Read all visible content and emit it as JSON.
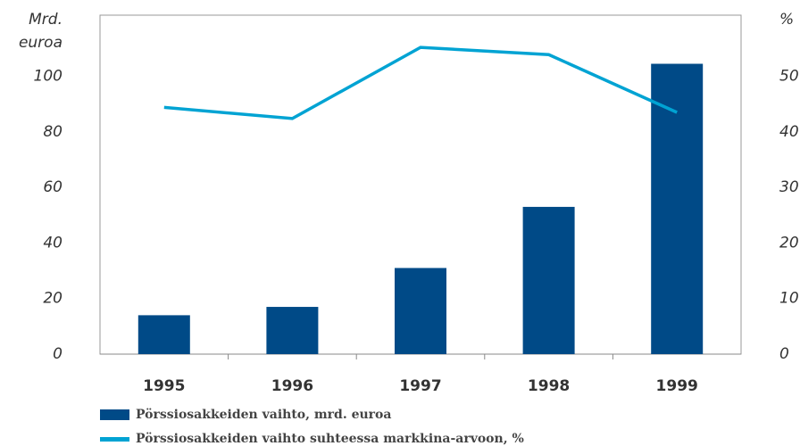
{
  "chart_data": {
    "type": "bar-line",
    "y_label": [
      "Mrd.",
      "euroa"
    ],
    "y2_label": "%",
    "categories": [
      "1995",
      "1996",
      "1997",
      "1998",
      "1999"
    ],
    "series": [
      {
        "name": "Pörssiosakkeiden vaihto, mrd. euroa",
        "color": "#004a87",
        "type": "bar",
        "values": [
          14,
          17,
          31,
          53,
          104.5
        ]
      },
      {
        "name": "Pörssiosakkeiden vaihto suhteessa markkina-arvoon, %",
        "color": "#00a3d3",
        "type": "line",
        "axis": "y2",
        "values": [
          44.4,
          42.4,
          55.2,
          53.9,
          43.5
        ]
      }
    ],
    "ylim": [
      0,
      122
    ],
    "yticks": [
      0,
      20,
      40,
      60,
      80,
      100
    ],
    "y2lim": [
      0,
      61
    ],
    "y2ticks": [
      0,
      10,
      20,
      30,
      40,
      50
    ]
  }
}
